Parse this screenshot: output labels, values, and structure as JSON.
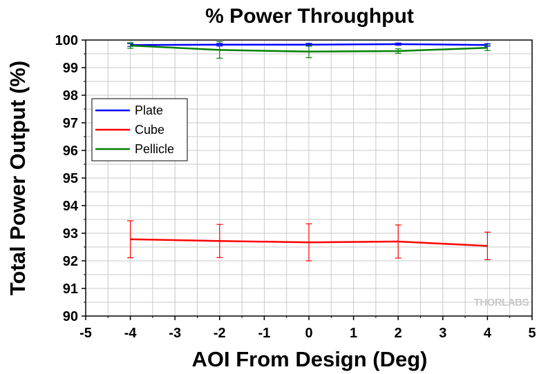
{
  "chart_data": {
    "type": "line",
    "title": "% Power Throughput",
    "xlabel": "AOI From Design (Deg)",
    "ylabel": "Total Power Output (%)",
    "xlim": [
      -5,
      5
    ],
    "ylim": [
      90,
      100
    ],
    "xticks": [
      -5,
      -4,
      -3,
      -2,
      -1,
      0,
      1,
      2,
      3,
      4,
      5
    ],
    "yticks": [
      90,
      91,
      92,
      93,
      94,
      95,
      96,
      97,
      98,
      99,
      100
    ],
    "grid": true,
    "legend_position": "upper-left",
    "series": [
      {
        "name": "Plate",
        "color": "#0000ff",
        "x": [
          -4,
          -2,
          0,
          2,
          4
        ],
        "values": [
          99.82,
          99.83,
          99.83,
          99.85,
          99.82
        ],
        "error": [
          0.05,
          0.05,
          0.05,
          0.04,
          0.05
        ]
      },
      {
        "name": "Cube",
        "color": "#ff0000",
        "x": [
          -4,
          -2,
          0,
          2,
          4
        ],
        "values": [
          92.78,
          92.72,
          92.67,
          92.7,
          92.54
        ],
        "error": [
          0.67,
          0.6,
          0.67,
          0.6,
          0.5
        ]
      },
      {
        "name": "Pellicle",
        "color": "#008000",
        "x": [
          -4,
          -2,
          0,
          2,
          4
        ],
        "values": [
          99.8,
          99.64,
          99.58,
          99.6,
          99.72
        ],
        "error": [
          0.1,
          0.3,
          0.22,
          0.08,
          0.1
        ]
      }
    ],
    "watermark": "THORLABS"
  }
}
